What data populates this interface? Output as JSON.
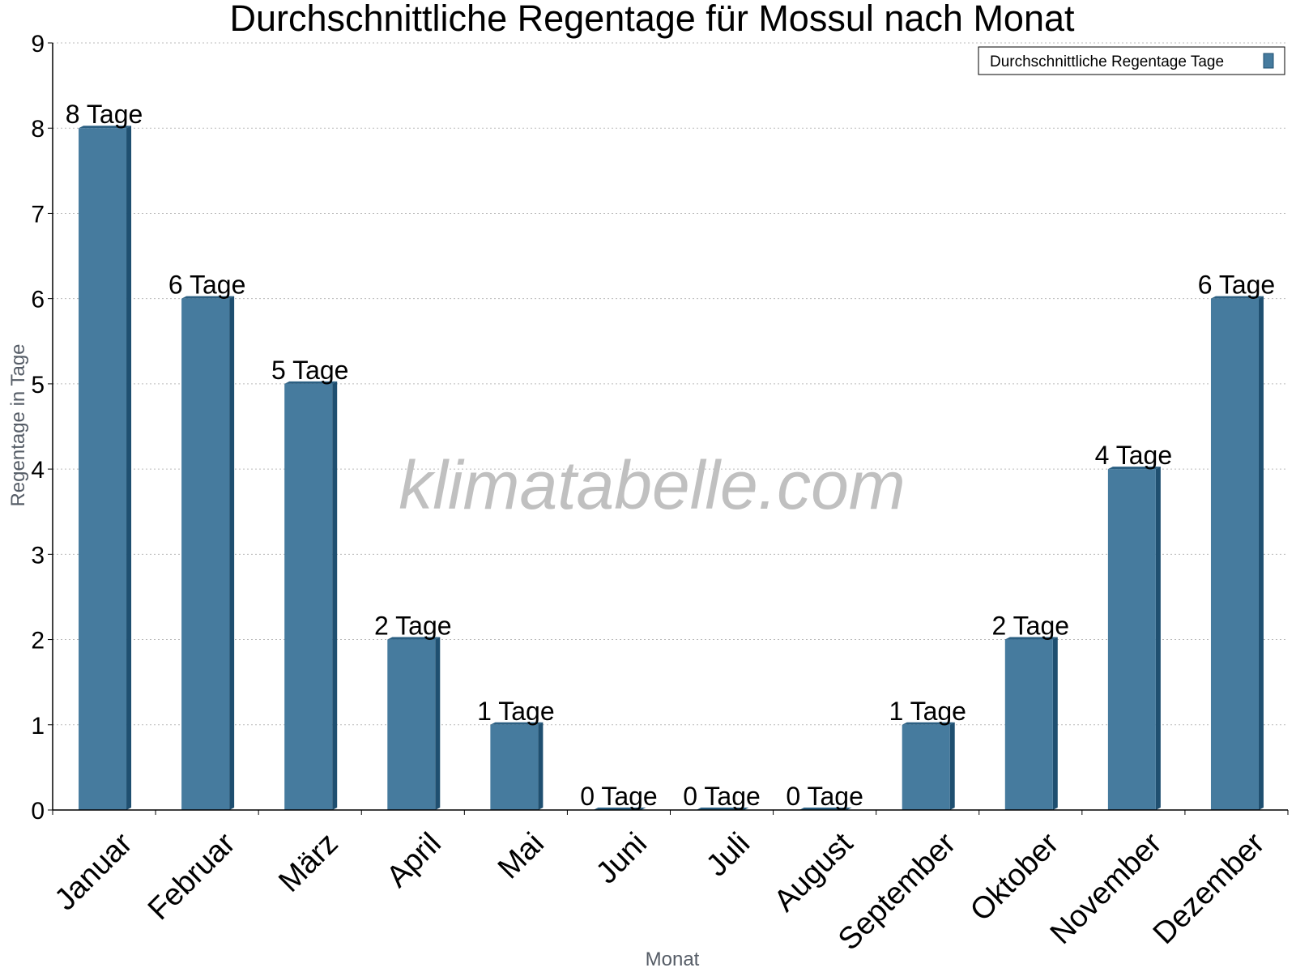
{
  "watermark": "klimatabelle.com",
  "colors": {
    "bar_front": "#467b9e",
    "bar_side": "#1f4f70",
    "bar_top": "#2b5f82",
    "grid": "#bbbbbb",
    "axis": "#000000"
  },
  "chart_data": {
    "type": "bar",
    "title": "Durchschnittliche Regentage für Mossul nach Monat",
    "xlabel": "Monat",
    "ylabel": "Regentage in Tage",
    "ylim": [
      0,
      9
    ],
    "yticks": [
      "0",
      "1",
      "2",
      "3",
      "4",
      "5",
      "6",
      "7",
      "8",
      "9"
    ],
    "grid": true,
    "legend_position": "top-right",
    "categories": [
      "Januar",
      "Februar",
      "März",
      "April",
      "Mai",
      "Juni",
      "Juli",
      "August",
      "September",
      "Oktober",
      "November",
      "Dezember"
    ],
    "series": [
      {
        "name": "Durchschnittliche Regentage Tage",
        "values": [
          8,
          6,
          5,
          2,
          1,
          0,
          0,
          0,
          1,
          2,
          4,
          6
        ],
        "labels": [
          "8 Tage",
          "6 Tage",
          "5 Tage",
          "2 Tage",
          "1 Tage",
          "0 Tage",
          "0 Tage",
          "0 Tage",
          "1 Tage",
          "2 Tage",
          "4 Tage",
          "6 Tage"
        ]
      }
    ]
  }
}
